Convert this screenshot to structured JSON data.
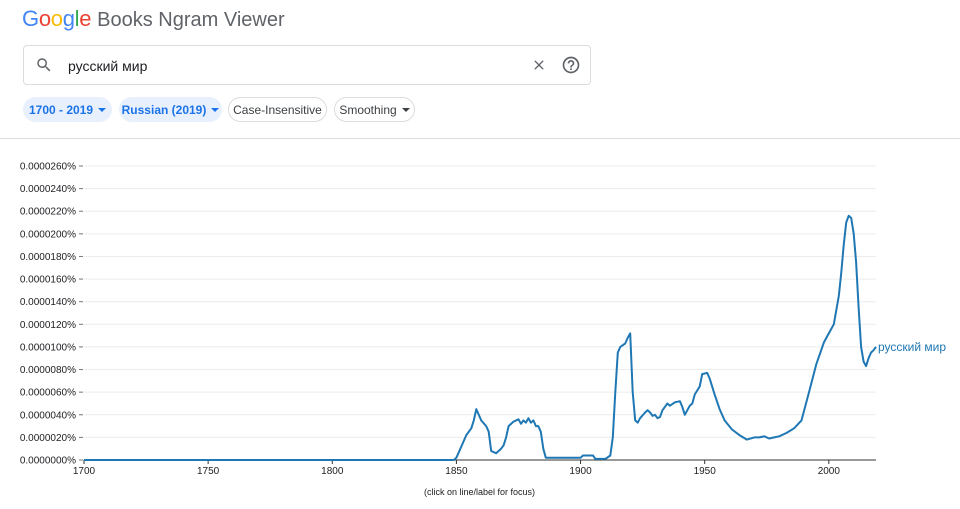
{
  "header": {
    "logo_letters": [
      {
        "ch": "G",
        "color": "#4285F4"
      },
      {
        "ch": "o",
        "color": "#EA4335"
      },
      {
        "ch": "o",
        "color": "#FBBC05"
      },
      {
        "ch": "g",
        "color": "#4285F4"
      },
      {
        "ch": "l",
        "color": "#34A853"
      },
      {
        "ch": "e",
        "color": "#EA4335"
      }
    ],
    "title": "Books Ngram Viewer"
  },
  "search": {
    "value": "русский мир",
    "icons": {
      "search": "search-icon",
      "clear": "close-icon",
      "help": "help-icon"
    }
  },
  "filters": {
    "years": "1700 - 2019",
    "corpus": "Russian (2019)",
    "case": "Case-Insensitive",
    "smoothing": "Smoothing"
  },
  "caption": "(click on line/label for focus)",
  "chart_data": {
    "type": "line",
    "x_ticks": [
      "1700",
      "1750",
      "1800",
      "1850",
      "1900",
      "1950",
      "2000"
    ],
    "y_ticks": [
      "0.0000000%",
      "0.0000020%",
      "0.0000040%",
      "0.0000060%",
      "0.0000080%",
      "0.0000100%",
      "0.0000120%",
      "0.0000140%",
      "0.0000160%",
      "0.0000180%",
      "0.0000200%",
      "0.0000220%",
      "0.0000240%",
      "0.0000260%"
    ],
    "xlim": [
      1700,
      2019
    ],
    "ylim": [
      0,
      2.6e-05
    ],
    "grid": true,
    "line_color": "#1f77b4",
    "series": [
      {
        "name": "русский мир",
        "x": [
          1700,
          1849,
          1850,
          1852,
          1854,
          1856,
          1857,
          1858,
          1860,
          1862,
          1863,
          1864,
          1866,
          1868,
          1869,
          1870,
          1871,
          1873,
          1875,
          1876,
          1877,
          1878,
          1879,
          1880,
          1881,
          1882,
          1883,
          1884,
          1885,
          1886,
          1900,
          1901,
          1902,
          1904,
          1905,
          1906,
          1910,
          1912,
          1913,
          1914,
          1915,
          1916,
          1918,
          1919,
          1920,
          1921,
          1922,
          1923,
          1924,
          1926,
          1927,
          1928,
          1929,
          1930,
          1931,
          1932,
          1933,
          1935,
          1936,
          1938,
          1940,
          1941,
          1942,
          1944,
          1945,
          1946,
          1948,
          1949,
          1951,
          1952,
          1954,
          1956,
          1958,
          1961,
          1964,
          1967,
          1970,
          1972,
          1974,
          1976,
          1978,
          1980,
          1983,
          1986,
          1989,
          1992,
          1995,
          1998,
          2000,
          2002,
          2004,
          2005,
          2006,
          2007,
          2008,
          2009,
          2010,
          2011,
          2012,
          2013,
          2014,
          2015,
          2016,
          2017,
          2018,
          2019
        ],
        "y": [
          0.0,
          0.0,
          2e-07,
          1.2e-06,
          2.2e-06,
          2.8e-06,
          3.5e-06,
          4.5e-06,
          3.5e-06,
          3e-06,
          2.5e-06,
          8e-07,
          6e-07,
          1e-06,
          1.3e-06,
          2e-06,
          3e-06,
          3.4e-06,
          3.6e-06,
          3.2e-06,
          3.5e-06,
          3.3e-06,
          3.7e-06,
          3.3e-06,
          3.5e-06,
          3e-06,
          3e-06,
          2.5e-06,
          1e-06,
          2e-07,
          2e-07,
          4e-07,
          4e-07,
          4e-07,
          4e-07,
          1e-07,
          1e-07,
          4e-07,
          2e-06,
          6e-06,
          9.5e-06,
          1e-05,
          1.03e-05,
          1.08e-05,
          1.12e-05,
          6e-06,
          3.5e-06,
          3.3e-06,
          3.7e-06,
          4.2e-06,
          4.4e-06,
          4.2e-06,
          3.9e-06,
          4e-06,
          3.7e-06,
          3.8e-06,
          4.4e-06,
          5e-06,
          4.8e-06,
          5.1e-06,
          5.2e-06,
          4.7e-06,
          4e-06,
          4.8e-06,
          5e-06,
          5.8e-06,
          6.5e-06,
          7.6e-06,
          7.7e-06,
          7.2e-06,
          5.8e-06,
          4.5e-06,
          3.5e-06,
          2.7e-06,
          2.2e-06,
          1.8e-06,
          2e-06,
          2e-06,
          2.1e-06,
          1.9e-06,
          2e-06,
          2.1e-06,
          2.4e-06,
          2.8e-06,
          3.5e-06,
          6e-06,
          8.5e-06,
          1.04e-05,
          1.12e-05,
          1.2e-05,
          1.45e-05,
          1.65e-05,
          1.9e-05,
          2.1e-05,
          2.16e-05,
          2.14e-05,
          2e-05,
          1.75e-05,
          1.35e-05,
          1e-05,
          8.7e-06,
          8.3e-06,
          9e-06,
          9.5e-06,
          9.7e-06,
          1e-05
        ]
      }
    ]
  }
}
